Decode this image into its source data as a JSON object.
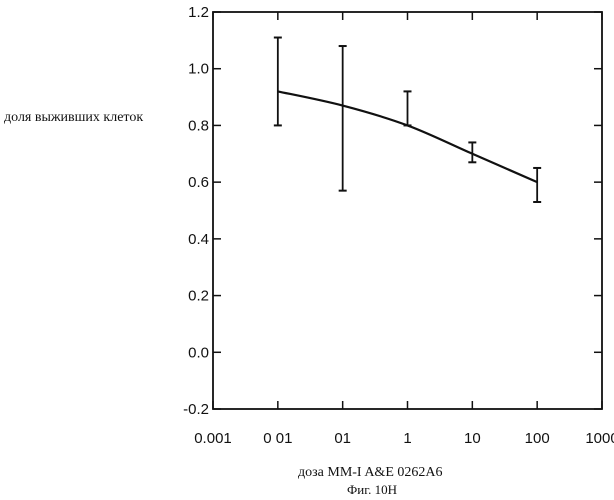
{
  "chart_data": {
    "type": "line",
    "xlabel": "доза MM-I  A&E  0262A6",
    "ylabel": "доля выживших клеток",
    "caption": "Фиг. 10H",
    "x_scale": "log",
    "xlim": [
      0.001,
      1000
    ],
    "ylim": [
      -0.2,
      1.2
    ],
    "x_tick_labels": [
      "0.001",
      "0 01",
      "01",
      "1",
      "10",
      "100",
      "1000"
    ],
    "y_tick_labels": [
      "1.2",
      "1.0",
      "0.8",
      "0.6",
      "0.4",
      "0.2",
      "0.0",
      "-0.2"
    ],
    "grid": false,
    "series": [
      {
        "x": [
          0.01,
          0.1,
          1,
          10,
          100
        ],
        "y": [
          0.92,
          0.87,
          0.8,
          0.7,
          0.6
        ],
        "err_low": [
          0.8,
          0.57,
          0.8,
          0.67,
          0.53
        ],
        "err_high": [
          1.11,
          1.08,
          0.92,
          0.74,
          0.65
        ]
      }
    ]
  }
}
